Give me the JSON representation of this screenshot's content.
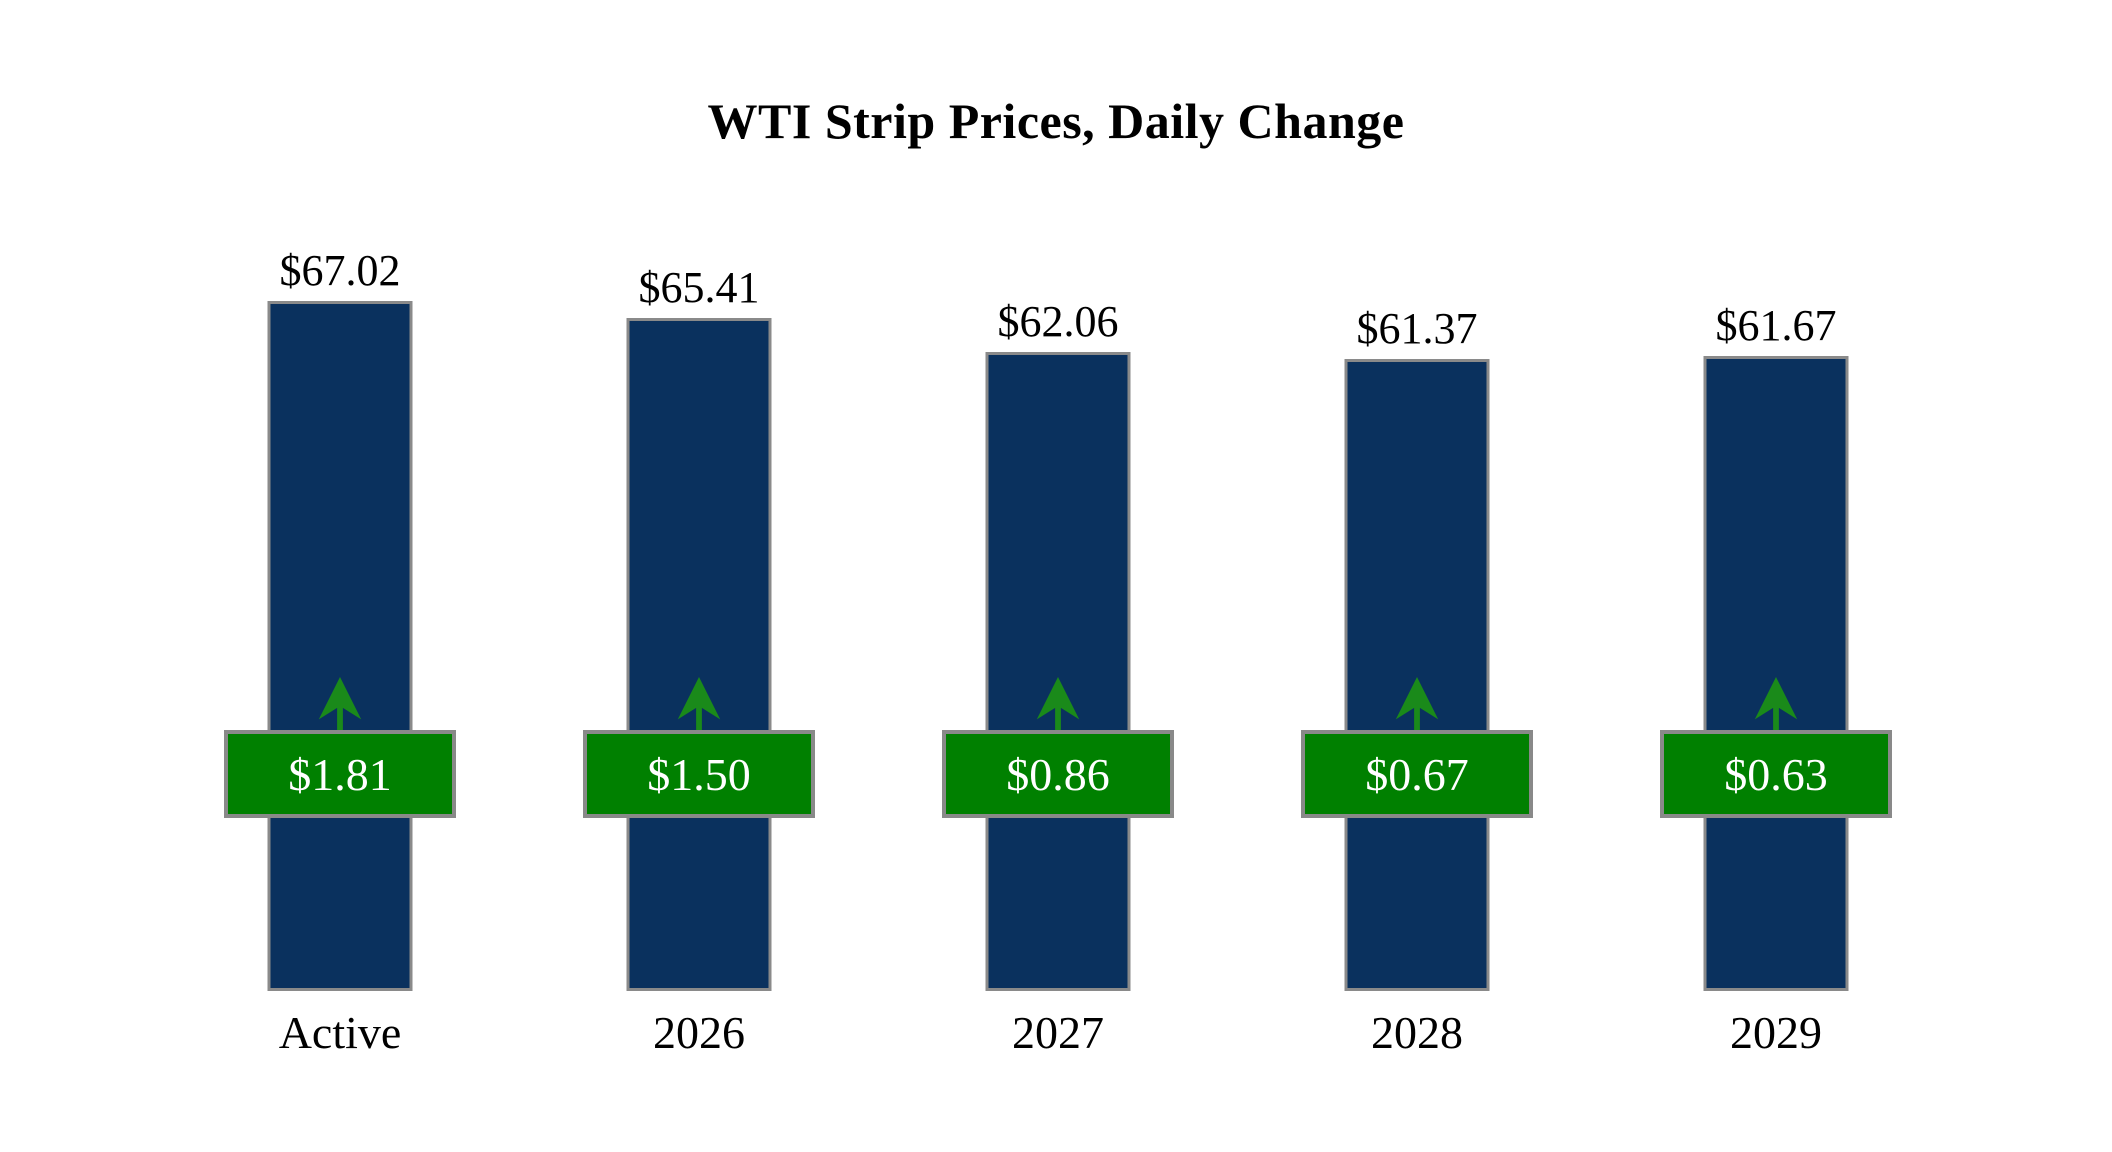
{
  "title": "WTI Strip Prices, Daily Change",
  "chart_data": {
    "type": "bar",
    "title": "WTI Strip Prices, Daily Change",
    "categories": [
      "Active",
      "2026",
      "2027",
      "2028",
      "2029"
    ],
    "series": [
      {
        "name": "WTI strip price (USD per bbl)",
        "values": [
          67.02,
          65.41,
          62.06,
          61.37,
          61.67
        ]
      },
      {
        "name": "Daily change (USD)",
        "values": [
          1.81,
          1.5,
          0.86,
          0.67,
          0.63
        ]
      }
    ],
    "xlabel": "",
    "ylabel": "",
    "ylim": [
      0,
      70
    ],
    "grid": false,
    "legend_position": "none",
    "bars": [
      {
        "category": "Active",
        "value": 67.02,
        "price_label": "$67.02",
        "change_value": 1.81,
        "change_label": "$1.81",
        "direction": "up"
      },
      {
        "category": "2026",
        "value": 65.41,
        "price_label": "$65.41",
        "change_value": 1.5,
        "change_label": "$1.50",
        "direction": "up"
      },
      {
        "category": "2027",
        "value": 62.06,
        "price_label": "$62.06",
        "change_value": 0.86,
        "change_label": "$0.86",
        "direction": "up"
      },
      {
        "category": "2028",
        "value": 61.37,
        "price_label": "$61.37",
        "change_value": 0.67,
        "change_label": "$0.67",
        "direction": "up"
      },
      {
        "category": "2029",
        "value": 61.67,
        "price_label": "$61.67",
        "change_value": 0.63,
        "change_label": "$0.63",
        "direction": "up"
      }
    ],
    "colors": {
      "bar_fill": "#0a315e",
      "bar_border": "#8a8a8a",
      "badge_fill": "#008000",
      "badge_border": "#898989",
      "badge_text": "#ffffff",
      "arrow": "#1a8a1a",
      "label_text": "#000000",
      "background": "#ffffff"
    }
  }
}
